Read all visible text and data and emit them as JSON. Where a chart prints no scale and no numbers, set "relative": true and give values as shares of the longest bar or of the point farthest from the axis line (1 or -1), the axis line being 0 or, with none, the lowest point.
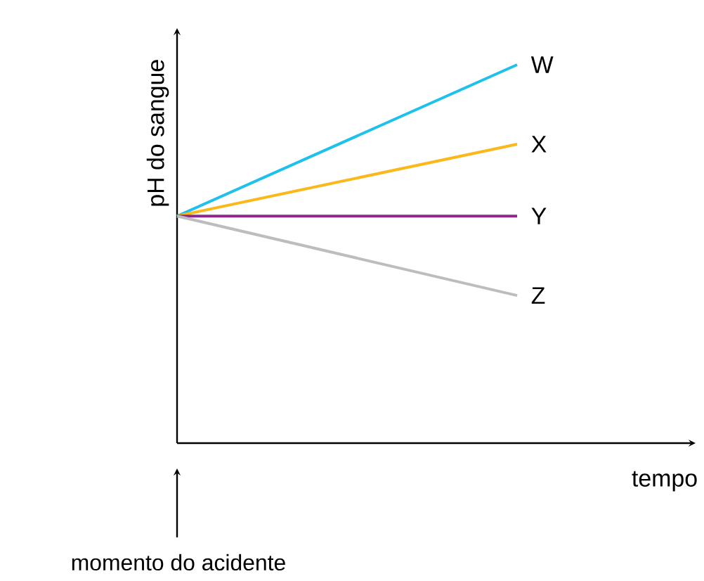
{
  "chart_data": {
    "type": "line",
    "relative": true,
    "xlabel": "tempo",
    "ylabel": "pH do sangue",
    "categories": [
      null,
      null
    ],
    "series": [
      {
        "name": "W",
        "color": "#1ec1ec",
        "values": [
          0.6,
          1
        ]
      },
      {
        "name": "X",
        "color": "#fbb81b",
        "values": [
          0.6,
          0.79
        ]
      },
      {
        "name": "Y",
        "color": "#8a2a8a",
        "values": [
          0.6,
          0.6
        ]
      },
      {
        "name": "Z",
        "color": "#bdbdbd",
        "values": [
          0.6,
          0.39
        ]
      }
    ],
    "annotations": [
      "momento do acidente"
    ],
    "legend": false,
    "marker": "none",
    "line_style": "solid"
  }
}
